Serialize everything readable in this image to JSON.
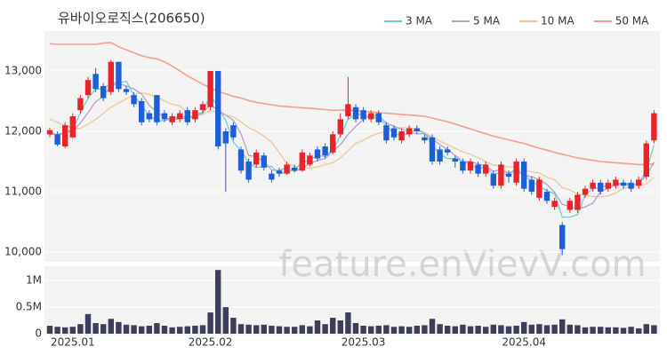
{
  "chart_data": {
    "type": "candlestick",
    "title": "유바이오로직스(206650)",
    "watermark": "feature.enVievV.com",
    "categories": [
      null,
      null,
      null,
      "2025.01",
      null,
      null,
      null,
      null,
      null,
      null,
      null,
      null,
      null,
      null,
      null,
      null,
      null,
      null,
      null,
      null,
      null,
      "2025.02",
      null,
      null,
      null,
      null,
      null,
      null,
      null,
      null,
      null,
      null,
      null,
      null,
      null,
      null,
      null,
      null,
      null,
      null,
      null,
      "2025.03",
      null,
      null,
      null,
      null,
      null,
      null,
      null,
      null,
      null,
      null,
      null,
      null,
      null,
      null,
      null,
      null,
      null,
      null,
      null,
      null,
      "2025.04",
      null,
      null,
      null,
      null,
      null,
      null,
      null,
      null,
      null,
      null,
      null,
      null,
      null,
      null,
      null,
      null,
      null
    ],
    "open": [
      11950,
      11950,
      11750,
      11900,
      12350,
      12600,
      12950,
      12750,
      12650,
      13150,
      12700,
      12600,
      12500,
      12300,
      12600,
      12300,
      12150,
      12200,
      12350,
      12200,
      12350,
      12400,
      13000,
      12000,
      12100,
      11700,
      11500,
      11450,
      11600,
      11300,
      11350,
      11300,
      11400,
      11350,
      11450,
      11700,
      11750,
      11650,
      11950,
      12250,
      12400,
      12350,
      12200,
      12300,
      12100,
      12050,
      11850,
      11950,
      12050,
      11900,
      11900,
      11700,
      11700,
      11550,
      11500,
      11350,
      11450,
      11300,
      11300,
      11100,
      11300,
      11150,
      11500,
      11200,
      10900,
      11000,
      10750,
      10450,
      10700,
      10700,
      10950,
      11050,
      11150,
      11050,
      11100,
      11150,
      11150,
      11100,
      11250,
      11850
    ],
    "high": [
      12060,
      12000,
      12150,
      12300,
      12600,
      12900,
      13050,
      12800,
      13180,
      13150,
      12750,
      12650,
      12550,
      12350,
      12600,
      12350,
      12300,
      12350,
      12400,
      12400,
      12500,
      13000,
      13000,
      12050,
      12150,
      11750,
      11550,
      11700,
      11650,
      11350,
      11400,
      11500,
      11450,
      11700,
      11650,
      11750,
      11800,
      12000,
      12300,
      12900,
      12450,
      12400,
      12350,
      12350,
      12150,
      12100,
      12050,
      12100,
      12100,
      11950,
      11950,
      11750,
      11750,
      11600,
      11550,
      11550,
      11500,
      11500,
      11350,
      11500,
      11350,
      11550,
      11550,
      11250,
      11250,
      11050,
      10900,
      10500,
      10900,
      11000,
      11100,
      11200,
      11200,
      11200,
      11250,
      11200,
      11200,
      11250,
      11850,
      12350
    ],
    "low": [
      11900,
      11750,
      11720,
      11880,
      12300,
      12550,
      12650,
      12500,
      12600,
      12650,
      12600,
      12400,
      12100,
      12150,
      12100,
      12150,
      12100,
      12150,
      12100,
      12150,
      12300,
      12350,
      11700,
      11000,
      11850,
      11300,
      11150,
      11400,
      11350,
      11150,
      11250,
      11280,
      11320,
      11330,
      11420,
      11500,
      11550,
      11620,
      11900,
      12200,
      12150,
      12150,
      12150,
      12100,
      11800,
      11850,
      11800,
      11900,
      11950,
      11800,
      11450,
      11450,
      11600,
      11400,
      11300,
      11300,
      11250,
      11250,
      11050,
      11050,
      11150,
      11100,
      11000,
      10950,
      10850,
      10800,
      10700,
      9950,
      10650,
      10650,
      10900,
      11000,
      10950,
      11000,
      11050,
      11050,
      11000,
      11050,
      11200,
      11800
    ],
    "close": [
      12020,
      11780,
      12100,
      12250,
      12550,
      12850,
      12700,
      12550,
      13150,
      12700,
      12650,
      12450,
      12150,
      12200,
      12150,
      12200,
      12250,
      12300,
      12150,
      12350,
      12450,
      13000,
      11750,
      11800,
      11900,
      11350,
      11200,
      11650,
      11400,
      11200,
      11300,
      11450,
      11350,
      11650,
      11600,
      11550,
      11600,
      11950,
      12200,
      12450,
      12200,
      12200,
      12300,
      12150,
      11850,
      11900,
      12000,
      12050,
      12000,
      11850,
      11500,
      11500,
      11650,
      11500,
      11350,
      11500,
      11300,
      11450,
      11100,
      11450,
      11250,
      11500,
      11050,
      11000,
      11200,
      10850,
      10850,
      10050,
      10850,
      10950,
      11050,
      11150,
      11000,
      11150,
      11200,
      11100,
      11050,
      11200,
      11800,
      12300
    ],
    "volume": [
      150000,
      130000,
      120000,
      130000,
      180000,
      370000,
      200000,
      180000,
      280000,
      220000,
      170000,
      160000,
      140000,
      150000,
      200000,
      150000,
      120000,
      130000,
      140000,
      150000,
      160000,
      400000,
      1200000,
      500000,
      300000,
      180000,
      170000,
      160000,
      170000,
      150000,
      140000,
      130000,
      130000,
      160000,
      140000,
      250000,
      180000,
      300000,
      250000,
      400000,
      200000,
      150000,
      140000,
      150000,
      160000,
      130000,
      140000,
      130000,
      150000,
      160000,
      280000,
      180000,
      150000,
      140000,
      170000,
      140000,
      150000,
      130000,
      170000,
      160000,
      140000,
      150000,
      220000,
      170000,
      180000,
      160000,
      170000,
      270000,
      170000,
      160000,
      120000,
      130000,
      130000,
      120000,
      120000,
      110000,
      130000,
      100000,
      180000,
      160000
    ],
    "up_color": "#e8232a",
    "down_color": "#1e5fd8",
    "volume_color": "#3d3d5c",
    "series": [
      {
        "name": "3 MA",
        "color": "#6fcfcf",
        "values": [
          12000,
          11930,
          11970,
          12040,
          12300,
          12550,
          12700,
          12700,
          12800,
          12800,
          12830,
          12600,
          12420,
          12270,
          12170,
          12180,
          12200,
          12250,
          12230,
          12270,
          12320,
          12600,
          12400,
          12180,
          11820,
          11680,
          11480,
          11400,
          11420,
          11420,
          11300,
          11320,
          11370,
          11480,
          11530,
          11600,
          11580,
          11700,
          11920,
          12200,
          12280,
          12280,
          12230,
          12220,
          12100,
          11970,
          11920,
          11980,
          12020,
          11970,
          11780,
          11620,
          11550,
          11550,
          11500,
          11450,
          11380,
          11420,
          11280,
          11330,
          11270,
          11400,
          11270,
          11180,
          11080,
          11020,
          10970,
          10580,
          10580,
          10620,
          10950,
          11050,
          11070,
          11100,
          11120,
          11150,
          11120,
          11120,
          11350,
          11770
        ]
      },
      {
        "name": "5 MA",
        "color": "#b4a0c8",
        "values": [
          11950,
          11950,
          11980,
          12000,
          12140,
          12310,
          12490,
          12580,
          12760,
          12790,
          12750,
          12700,
          12620,
          12430,
          12320,
          12230,
          12190,
          12220,
          12210,
          12250,
          12300,
          12450,
          12340,
          12270,
          12180,
          11960,
          11600,
          11580,
          11500,
          11360,
          11350,
          11400,
          11340,
          11390,
          11470,
          11520,
          11550,
          11670,
          11780,
          11950,
          12080,
          12200,
          12270,
          12260,
          12140,
          12080,
          12040,
          11990,
          11960,
          11960,
          11880,
          11780,
          11700,
          11600,
          11500,
          11500,
          11460,
          11420,
          11340,
          11360,
          11310,
          11350,
          11270,
          11250,
          11200,
          11120,
          10990,
          10790,
          10760,
          10710,
          10750,
          10810,
          11000,
          11060,
          11110,
          11130,
          11100,
          11140,
          11270,
          11490
        ]
      },
      {
        "name": "10 MA",
        "color": "#f0c896",
        "values": [
          12200,
          12150,
          12100,
          12050,
          12050,
          12120,
          12200,
          12300,
          12400,
          12470,
          12540,
          12610,
          12640,
          12610,
          12570,
          12500,
          12450,
          12420,
          12320,
          12290,
          12270,
          12350,
          12320,
          12270,
          12240,
          12160,
          12060,
          12000,
          11920,
          11820,
          11650,
          11460,
          11420,
          11410,
          11390,
          11410,
          11450,
          11480,
          11560,
          11680,
          11800,
          11850,
          11920,
          11970,
          11990,
          12020,
          12060,
          12060,
          12040,
          11980,
          11910,
          11840,
          11780,
          11720,
          11660,
          11620,
          11560,
          11500,
          11440,
          11430,
          11410,
          11410,
          11350,
          11330,
          11310,
          11240,
          11200,
          11070,
          11030,
          10960,
          10940,
          10920,
          10920,
          10930,
          10980,
          11060,
          11080,
          11100,
          11130,
          11240
        ]
      },
      {
        "name": "50 MA",
        "color": "#f4a08c",
        "values": [
          13450,
          13440,
          13440,
          13440,
          13440,
          13440,
          13440,
          13460,
          13470,
          13400,
          13350,
          13300,
          13250,
          13220,
          13200,
          13150,
          13080,
          13000,
          12920,
          12850,
          12780,
          12720,
          12660,
          12620,
          12580,
          12550,
          12510,
          12480,
          12460,
          12440,
          12420,
          12410,
          12400,
          12390,
          12380,
          12370,
          12360,
          12350,
          12350,
          12350,
          12340,
          12330,
          12320,
          12310,
          12300,
          12290,
          12280,
          12270,
          12260,
          12250,
          12220,
          12190,
          12160,
          12120,
          12080,
          12040,
          12000,
          11960,
          11920,
          11890,
          11860,
          11830,
          11800,
          11760,
          11720,
          11690,
          11650,
          11620,
          11590,
          11560,
          11540,
          11520,
          11500,
          11490,
          11480,
          11470,
          11460,
          11450,
          11450,
          11460
        ]
      }
    ],
    "ylim": [
      9840,
      13660
    ],
    "yticks": [
      {
        "value": 10000,
        "label": "10,000"
      },
      {
        "value": 11000,
        "label": "11,000"
      },
      {
        "value": 12000,
        "label": "12,000"
      },
      {
        "value": 13000,
        "label": "13,000"
      }
    ],
    "volume_ylim": [
      0,
      1270000
    ],
    "volume_ticks": [
      0,
      {
        "value": 500000,
        "label": "0.5M"
      },
      {
        "value": 1000000,
        "label": "1M"
      }
    ]
  }
}
